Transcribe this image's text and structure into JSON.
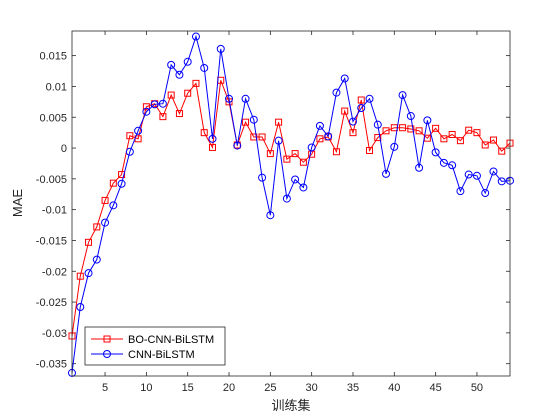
{
  "chart_data": {
    "type": "line",
    "xlabel": "训练集",
    "ylabel": "MAE",
    "xlim": [
      1,
      54
    ],
    "ylim": [
      -0.037,
      0.019
    ],
    "xticks": [
      5,
      10,
      15,
      20,
      25,
      30,
      35,
      40,
      45,
      50
    ],
    "yticks": [
      -0.035,
      -0.03,
      -0.025,
      -0.02,
      -0.015,
      -0.01,
      -0.005,
      0,
      0.005,
      0.01,
      0.015
    ],
    "grid": false,
    "legend_position": "bottom-left",
    "x": [
      1,
      2,
      3,
      4,
      5,
      6,
      7,
      8,
      9,
      10,
      11,
      12,
      13,
      14,
      15,
      16,
      17,
      18,
      19,
      20,
      21,
      22,
      23,
      24,
      25,
      26,
      27,
      28,
      29,
      30,
      31,
      32,
      33,
      34,
      35,
      36,
      37,
      38,
      39,
      40,
      41,
      42,
      43,
      44,
      45,
      46,
      47,
      48,
      49,
      50,
      51,
      52,
      53,
      54
    ],
    "series": [
      {
        "name": "BO-CNN-BiLSTM",
        "color": "#ff0000",
        "marker": "square",
        "values": [
          -0.0305,
          -0.0208,
          -0.0153,
          -0.0128,
          -0.0085,
          -0.0057,
          -0.0043,
          0.002,
          0.0015,
          0.0067,
          0.0072,
          0.0051,
          0.0086,
          0.0056,
          0.0089,
          0.0105,
          0.0025,
          0.0001,
          0.011,
          0.0075,
          0.0005,
          0.0042,
          0.0018,
          0.0018,
          -0.0009,
          0.0042,
          -0.0018,
          -0.0009,
          -0.0023,
          -0.001,
          0.0015,
          0.0018,
          -0.0006,
          0.006,
          0.0025,
          0.0078,
          -0.0004,
          0.0017,
          0.0028,
          0.0033,
          0.0033,
          0.0031,
          0.0028,
          0.0016,
          0.0032,
          0.0015,
          0.0022,
          0.0012,
          0.0029,
          0.0025,
          0.0005,
          0.0013,
          -0.0005,
          0.0008
        ]
      },
      {
        "name": "CNN-BiLSTM",
        "color": "#0000ff",
        "marker": "circle",
        "values": [
          -0.0365,
          -0.0258,
          -0.0203,
          -0.0181,
          -0.0121,
          -0.0093,
          -0.0058,
          -0.0006,
          0.0028,
          0.0059,
          0.0071,
          0.0072,
          0.0135,
          0.0119,
          0.014,
          0.0181,
          0.013,
          0.0015,
          0.0161,
          0.008,
          0.0004,
          0.008,
          0.0046,
          -0.0048,
          -0.0109,
          0.0012,
          -0.0082,
          -0.0051,
          -0.0064,
          0.0001,
          0.0036,
          0.0019,
          0.009,
          0.0113,
          0.0043,
          0.0065,
          0.008,
          0.0038,
          -0.0042,
          0.0002,
          0.0086,
          0.0052,
          -0.0032,
          0.0045,
          -0.0007,
          -0.0024,
          -0.0028,
          -0.007,
          -0.0043,
          -0.0045,
          -0.0073,
          -0.0038,
          -0.0054,
          -0.0053
        ]
      }
    ]
  }
}
